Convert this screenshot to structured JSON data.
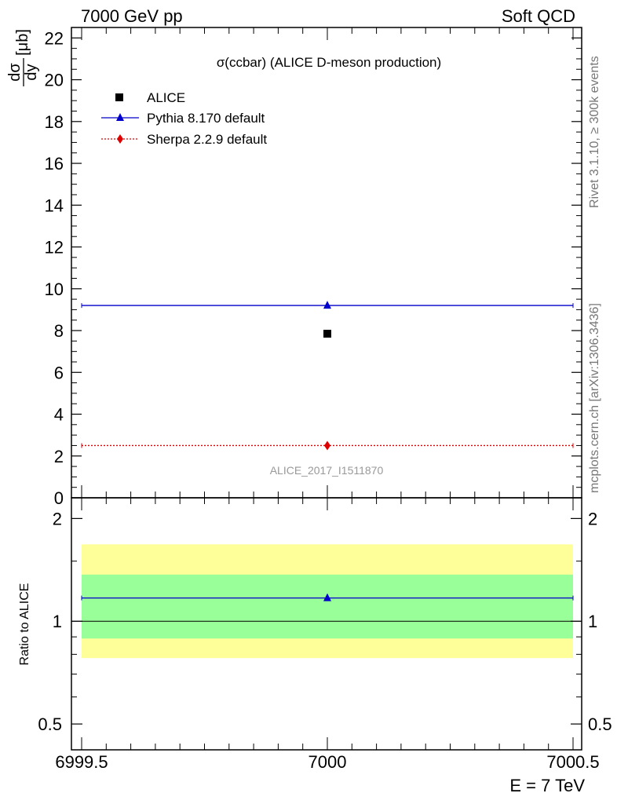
{
  "header": {
    "left": "7000 GeV pp",
    "right": "Soft QCD"
  },
  "side": {
    "rivet": "Rivet 3.1.10, ≥ 300k events",
    "mcplots": "mcplots.cern.ch [arXiv:1306.3436]"
  },
  "colors": {
    "alice": "#000000",
    "pythia": "#0000cc",
    "sherpa": "#dd0000",
    "band_inner": "#99ff99",
    "band_outer": "#ffff99"
  },
  "chart_data": {
    "type": "scatter",
    "title": "σ(ccbar) (ALICE D-meson production)",
    "analysis_label": "ALICE_2017_I1511870",
    "xlabel": "E = 7 TeV",
    "ylabel_num": "dσ",
    "ylabel_den": "dy",
    "ylabel_unit": "[μb]",
    "xlim": [
      6999.5,
      7000.5
    ],
    "ylim": [
      0,
      22.5
    ],
    "x_ticks": [
      "6999.5",
      "7000",
      "7000.5"
    ],
    "y_ticks": [
      "0",
      "2",
      "4",
      "6",
      "8",
      "10",
      "12",
      "14",
      "16",
      "18",
      "20",
      "22"
    ],
    "legend": {
      "position": "top-left",
      "entries": [
        "ALICE",
        "Pythia 8.170 default",
        "Sherpa 2.2.9 default"
      ]
    },
    "series": [
      {
        "name": "ALICE",
        "marker": "square",
        "x": [
          7000
        ],
        "y": [
          7.85
        ],
        "xerr": [
          0
        ]
      },
      {
        "name": "Pythia 8.170 default",
        "marker": "triangle",
        "x": [
          7000
        ],
        "y": [
          9.2
        ],
        "xerr": [
          0.5
        ]
      },
      {
        "name": "Sherpa 2.2.9 default",
        "marker": "diamond",
        "x": [
          7000
        ],
        "y": [
          2.5
        ],
        "xerr": [
          0.5
        ]
      }
    ],
    "ratio": {
      "ylabel": "Ratio to ALICE",
      "ylim": [
        0.42,
        2.3
      ],
      "scale": "log",
      "y_ticks": [
        "0.5",
        "1",
        "2"
      ],
      "band_inner": [
        0.89,
        1.37
      ],
      "band_outer": [
        0.78,
        1.68
      ],
      "series": [
        {
          "name": "Pythia 8.170 default",
          "marker": "triangle",
          "x": [
            7000
          ],
          "y": [
            1.17
          ],
          "xerr": [
            0.5
          ]
        }
      ]
    }
  }
}
